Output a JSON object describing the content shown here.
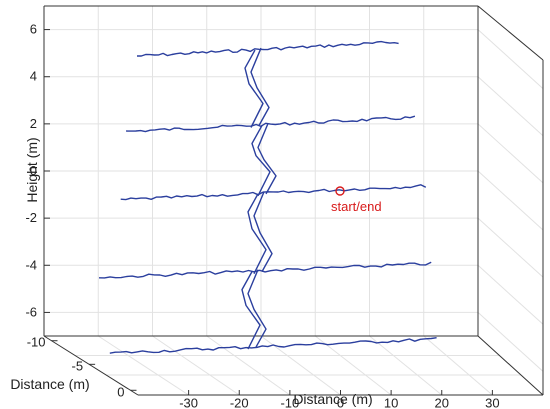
{
  "chart_data": {
    "type": "line",
    "projection": "3d",
    "title": "",
    "axes": {
      "height": {
        "label": "Height (m)",
        "ticks": [
          "6",
          "4",
          "2",
          "0",
          "-2",
          "-4",
          "-6"
        ],
        "lim": [
          -7,
          7
        ]
      },
      "distance": {
        "label": "Distance (m)",
        "ticks": [
          "-30",
          "-20",
          "-10",
          "0",
          "10",
          "20",
          "30"
        ],
        "lim": [
          -40,
          40
        ]
      },
      "depth": {
        "label": "Distance (m)",
        "ticks": [
          "-10",
          "-5",
          "0"
        ],
        "lim": [
          -10,
          0
        ]
      }
    },
    "grid": true,
    "series": [
      {
        "color": "#2b3f9e",
        "floors": [
          {
            "height": 5.3,
            "x_start": -33,
            "x_end": 18
          },
          {
            "height": 2.1,
            "x_start": -35,
            "x_end": 21
          },
          {
            "height": -0.8,
            "x_start": -36,
            "x_end": 23
          },
          {
            "height": -4.1,
            "x_start": -40,
            "x_end": 24
          },
          {
            "height": -7.3,
            "x_start": -38,
            "x_end": 25
          }
        ]
      }
    ],
    "annotation": {
      "text": "start/end",
      "color": "#d81b1b"
    }
  }
}
